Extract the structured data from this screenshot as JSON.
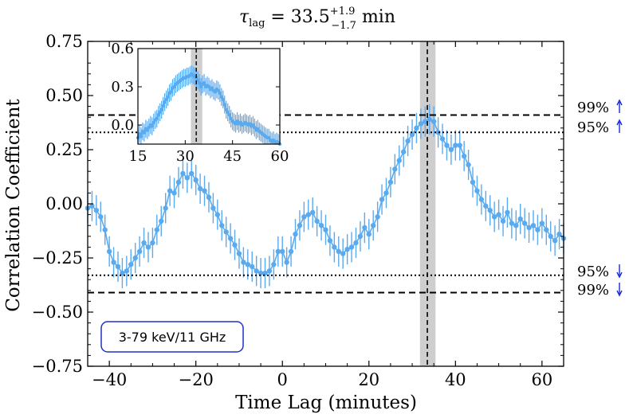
{
  "chart_data": {
    "type": "line",
    "title": {
      "main": "τ",
      "subscript": "lag",
      "equals": " = 33.5",
      "sup": "+1.9",
      "sub": "−1.7",
      "unit": " min"
    },
    "xlabel": "Time Lag (minutes)",
    "ylabel": "Correlation Coefficient",
    "xlim": [
      -45,
      65
    ],
    "ylim": [
      -0.75,
      0.75
    ],
    "xticks": [
      {
        "value": -40,
        "label": "−40"
      },
      {
        "value": -20,
        "label": "−20"
      },
      {
        "value": 0,
        "label": "0"
      },
      {
        "value": 20,
        "label": "20"
      },
      {
        "value": 40,
        "label": "40"
      },
      {
        "value": 60,
        "label": "60"
      }
    ],
    "yticks": [
      {
        "value": 0.75,
        "label": "0.75"
      },
      {
        "value": 0.5,
        "label": "0.50"
      },
      {
        "value": 0.25,
        "label": "0.25"
      },
      {
        "value": 0.0,
        "label": "0.00"
      },
      {
        "value": -0.25,
        "label": "−0.25"
      },
      {
        "value": -0.5,
        "label": "−0.50"
      },
      {
        "value": -0.75,
        "label": "−0.75"
      }
    ],
    "series": [
      {
        "name": "3-79 keV/11 GHz",
        "color": "#5aaaf0",
        "x": [
          -45,
          -44,
          -43,
          -42,
          -41,
          -40,
          -39,
          -38,
          -37,
          -36,
          -35,
          -34,
          -33,
          -32,
          -31,
          -30,
          -29,
          -28,
          -27,
          -26,
          -25,
          -24,
          -23,
          -22,
          -21,
          -20,
          -19,
          -18,
          -17,
          -16,
          -15,
          -14,
          -13,
          -12,
          -11,
          -10,
          -9,
          -8,
          -7,
          -6,
          -5,
          -4,
          -3,
          -2,
          -1,
          0,
          1,
          2,
          3,
          4,
          5,
          6,
          7,
          8,
          9,
          10,
          11,
          12,
          13,
          14,
          15,
          16,
          17,
          18,
          19,
          20,
          21,
          22,
          23,
          24,
          25,
          26,
          27,
          28,
          29,
          30,
          31,
          32,
          33,
          34,
          35,
          36,
          37,
          38,
          39,
          40,
          41,
          42,
          43,
          44,
          45,
          46,
          47,
          48,
          49,
          50,
          51,
          52,
          53,
          54,
          55,
          56,
          57,
          58,
          59,
          60,
          61,
          62,
          63,
          64,
          65
        ],
        "y": [
          -0.02,
          -0.01,
          -0.03,
          -0.06,
          -0.12,
          -0.22,
          -0.27,
          -0.29,
          -0.32,
          -0.31,
          -0.28,
          -0.25,
          -0.22,
          -0.18,
          -0.2,
          -0.18,
          -0.12,
          -0.08,
          -0.02,
          0.06,
          0.05,
          0.1,
          0.14,
          0.12,
          0.14,
          0.11,
          0.07,
          0.06,
          0.03,
          -0.02,
          -0.05,
          -0.1,
          -0.13,
          -0.16,
          -0.19,
          -0.23,
          -0.27,
          -0.28,
          -0.29,
          -0.31,
          -0.32,
          -0.32,
          -0.31,
          -0.28,
          -0.22,
          -0.22,
          -0.27,
          -0.22,
          -0.14,
          -0.1,
          -0.06,
          -0.05,
          -0.04,
          -0.08,
          -0.1,
          -0.12,
          -0.17,
          -0.2,
          -0.22,
          -0.23,
          -0.21,
          -0.2,
          -0.18,
          -0.15,
          -0.11,
          -0.14,
          -0.1,
          -0.06,
          0.02,
          0.05,
          0.1,
          0.16,
          0.2,
          0.24,
          0.29,
          0.32,
          0.35,
          0.37,
          0.38,
          0.39,
          0.38,
          0.33,
          0.3,
          0.27,
          0.25,
          0.27,
          0.27,
          0.22,
          0.18,
          0.1,
          0.06,
          0.02,
          -0.01,
          -0.03,
          -0.06,
          -0.05,
          -0.08,
          -0.04,
          -0.09,
          -0.1,
          -0.07,
          -0.09,
          -0.11,
          -0.1,
          -0.12,
          -0.09,
          -0.12,
          -0.15,
          -0.17,
          -0.14,
          -0.16
        ],
        "yerr": 0.07
      }
    ],
    "hlines": [
      {
        "y": 0.41,
        "style": "dashed",
        "label": "99%",
        "arrow": "up"
      },
      {
        "y": 0.33,
        "style": "dotted",
        "label": "95%",
        "arrow": "up"
      },
      {
        "y": -0.33,
        "style": "dotted",
        "label": "95%",
        "arrow": "down"
      },
      {
        "y": -0.41,
        "style": "dashed",
        "label": "99%",
        "arrow": "down"
      }
    ],
    "vline": {
      "x": 33.5,
      "band": [
        31.8,
        35.4
      ],
      "style": "dashed"
    },
    "legend_badge": {
      "text": "3-79 keV/11 GHz",
      "placement": "bottom-left",
      "border_color": "#2130c8"
    },
    "arrow_color": "#1a2bd9",
    "band_color": "#bdbdbd",
    "inset": {
      "xlim": [
        15,
        60
      ],
      "ylim": [
        -0.15,
        0.6
      ],
      "xticks": [
        {
          "value": 15,
          "label": "15"
        },
        {
          "value": 30,
          "label": "30"
        },
        {
          "value": 45,
          "label": "45"
        },
        {
          "value": 60,
          "label": "60"
        }
      ],
      "yticks": [
        {
          "value": 0.0,
          "label": "0.0"
        },
        {
          "value": 0.3,
          "label": "0.3"
        },
        {
          "value": 0.6,
          "label": "0.6"
        }
      ],
      "x_start": 15,
      "x_step": 0.5,
      "y": [
        -0.1,
        -0.07,
        -0.09,
        -0.05,
        -0.06,
        -0.03,
        -0.04,
        -0.02,
        0.0,
        -0.01,
        0.02,
        0.04,
        0.05,
        0.08,
        0.1,
        0.12,
        0.15,
        0.18,
        0.2,
        0.22,
        0.25,
        0.26,
        0.29,
        0.3,
        0.32,
        0.33,
        0.34,
        0.35,
        0.36,
        0.37,
        0.37,
        0.38,
        0.38,
        0.39,
        0.4,
        0.39,
        0.38,
        0.37,
        0.35,
        0.33,
        0.3,
        0.32,
        0.33,
        0.3,
        0.31,
        0.3,
        0.28,
        0.29,
        0.27,
        0.26,
        0.28,
        0.27,
        0.25,
        0.22,
        0.2,
        0.16,
        0.12,
        0.1,
        0.08,
        0.05,
        0.03,
        0.02,
        0.01,
        0.03,
        0.01,
        0.02,
        0.0,
        0.01,
        0.02,
        0.01,
        0.0,
        0.01,
        -0.01,
        0.0,
        -0.02,
        -0.04,
        -0.03,
        -0.05,
        -0.06,
        -0.07,
        -0.08,
        -0.09,
        -0.1,
        -0.1,
        -0.12,
        -0.13,
        -0.12,
        -0.14,
        -0.13,
        -0.14,
        -0.15
      ],
      "yerr": 0.07
    }
  }
}
